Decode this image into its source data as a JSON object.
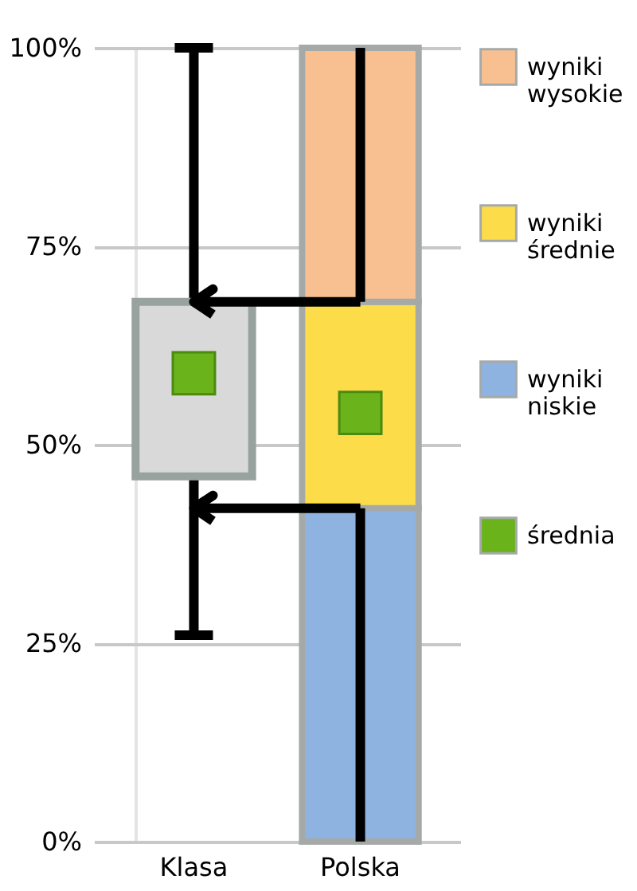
{
  "chart_data": {
    "type": "bar",
    "categories": [
      "Klasa",
      "Polska"
    ],
    "stacked": true,
    "series": [
      {
        "name": "wyniki niskie",
        "color": "#8fb3e0",
        "values": [
          null,
          42
        ]
      },
      {
        "name": "wyniki średnie",
        "color": "#fddc4a",
        "values": [
          null,
          26
        ]
      },
      {
        "name": "wyniki wysokie",
        "color": "#f8c090",
        "values": [
          null,
          32
        ]
      },
      {
        "type": "box",
        "color": "#d9d9d9",
        "boxes": [
          {
            "low": 26,
            "q1": 46,
            "median": null,
            "q3": 68,
            "high": 100
          },
          null
        ]
      },
      {
        "type": "scatter",
        "name": "średnia",
        "color": "#6ab31b",
        "values": [
          59,
          54
        ],
        "marker": "square"
      }
    ],
    "ylim": [
      0,
      100
    ],
    "yticks": [
      {
        "value": 0,
        "label": "0%"
      },
      {
        "value": 25,
        "label": "25%"
      },
      {
        "value": 50,
        "label": "50%"
      },
      {
        "value": 75,
        "label": "75%"
      },
      {
        "value": 100,
        "label": "100%"
      }
    ],
    "ref_lines": [
      {
        "axis": "y",
        "value": 42,
        "color": "#000000"
      },
      {
        "axis": "y",
        "value": 68,
        "color": "#000000"
      }
    ],
    "grid": true,
    "legend": "right"
  }
}
